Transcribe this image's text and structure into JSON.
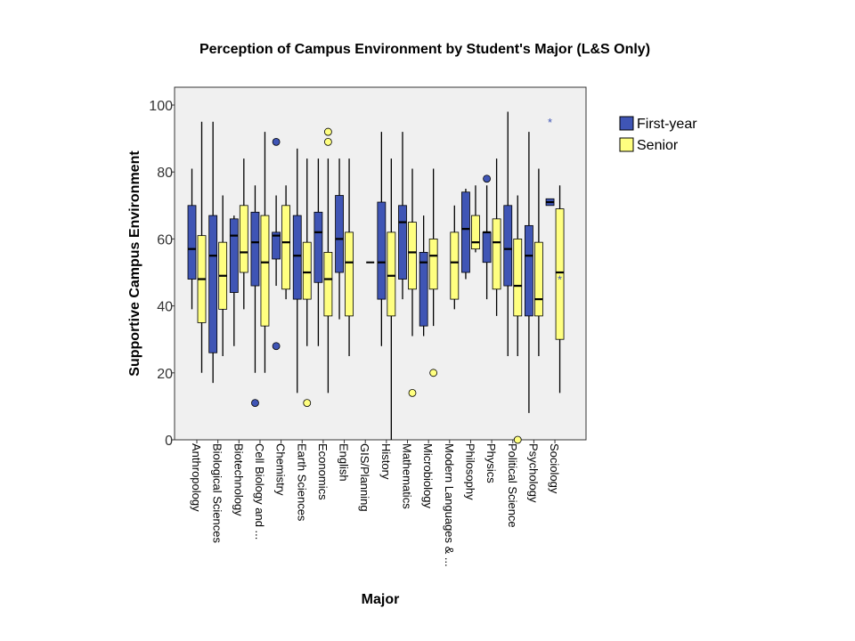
{
  "chart_data": {
    "type": "boxplot",
    "title": "Perception of Campus Environment by Student's Major (L&S Only)",
    "xlabel": "Major",
    "ylabel": "Supportive Campus Environment",
    "ylim": [
      0,
      100
    ],
    "yticks": [
      0,
      20,
      40,
      60,
      80,
      100
    ],
    "grid": false,
    "legend_position": "right",
    "colors": {
      "First-year": "#3f55b5",
      "Senior": "#ffff80",
      "plot_bg": "#f0f0f0",
      "star": "#3f55b5"
    },
    "categories": [
      "Anthropology",
      "Biological Sciences",
      "Biotechnology",
      "Cell Biology and ...",
      "Chemistry",
      "Earth Sciences",
      "Economics",
      "English",
      "GIS/Planning",
      "History",
      "Mathematics",
      "Microbiology",
      "Modern Languages & ...",
      "Philosophy",
      "Physics",
      "Political Science",
      "Psychology",
      "Sociology"
    ],
    "series": [
      {
        "name": "First-year",
        "boxes": [
          {
            "whisker_low": 39,
            "q1": 48,
            "median": 57,
            "q3": 70,
            "whisker_high": 81,
            "outliers": []
          },
          {
            "whisker_low": 17,
            "q1": 26,
            "median": 55,
            "q3": 67,
            "whisker_high": 95,
            "outliers": []
          },
          {
            "whisker_low": 28,
            "q1": 44,
            "median": 61,
            "q3": 66,
            "whisker_high": 67,
            "outliers": []
          },
          {
            "whisker_low": 20,
            "q1": 46,
            "median": 59,
            "q3": 68,
            "whisker_high": 76,
            "outliers": [
              11
            ]
          },
          {
            "whisker_low": 46,
            "q1": 54,
            "median": 61,
            "q3": 62,
            "whisker_high": 73,
            "outliers": [
              28,
              89
            ]
          },
          {
            "whisker_low": 14,
            "q1": 42,
            "median": 55,
            "q3": 67,
            "whisker_high": 87,
            "outliers": []
          },
          {
            "whisker_low": 28,
            "q1": 47,
            "median": 62,
            "q3": 68,
            "whisker_high": 84,
            "outliers": []
          },
          {
            "whisker_low": 36,
            "q1": 50,
            "median": 60,
            "q3": 73,
            "whisker_high": 84,
            "outliers": []
          },
          null,
          {
            "whisker_low": 28,
            "q1": 42,
            "median": 53,
            "q3": 71,
            "whisker_high": 92,
            "outliers": []
          },
          {
            "whisker_low": 42,
            "q1": 48,
            "median": 65,
            "q3": 70,
            "whisker_high": 92,
            "outliers": []
          },
          {
            "whisker_low": 31,
            "q1": 34,
            "median": 53,
            "q3": 56,
            "whisker_high": 67,
            "outliers": []
          },
          null,
          {
            "whisker_low": 48,
            "q1": 50,
            "median": 63,
            "q3": 74,
            "whisker_high": 75,
            "outliers": []
          },
          {
            "whisker_low": 42,
            "q1": 53,
            "median": 62,
            "q3": 62,
            "whisker_high": 76,
            "outliers": [
              78
            ]
          },
          {
            "whisker_low": 25,
            "q1": 46,
            "median": 57,
            "q3": 70,
            "whisker_high": 98,
            "outliers": []
          },
          {
            "whisker_low": 8,
            "q1": 37,
            "median": 55,
            "q3": 64,
            "whisker_high": 92,
            "outliers": []
          },
          {
            "whisker_low": 70,
            "q1": 70,
            "median": 71,
            "q3": 72,
            "whisker_high": 72,
            "outliers": [],
            "extremes": [
              95
            ]
          }
        ]
      },
      {
        "name": "Senior",
        "boxes": [
          {
            "whisker_low": 20,
            "q1": 35,
            "median": 48,
            "q3": 61,
            "whisker_high": 95,
            "outliers": []
          },
          {
            "whisker_low": 25,
            "q1": 39,
            "median": 49,
            "q3": 59,
            "whisker_high": 73,
            "outliers": []
          },
          {
            "whisker_low": 39,
            "q1": 50,
            "median": 56,
            "q3": 70,
            "whisker_high": 84,
            "outliers": []
          },
          {
            "whisker_low": 20,
            "q1": 34,
            "median": 53,
            "q3": 67,
            "whisker_high": 92,
            "outliers": []
          },
          {
            "whisker_low": 42,
            "q1": 45,
            "median": 59,
            "q3": 70,
            "whisker_high": 76,
            "outliers": []
          },
          {
            "whisker_low": 28,
            "q1": 42,
            "median": 50,
            "q3": 59,
            "whisker_high": 84,
            "outliers": [
              11
            ]
          },
          {
            "whisker_low": 14,
            "q1": 37,
            "median": 48,
            "q3": 56,
            "whisker_high": 84,
            "outliers": [
              89,
              92
            ]
          },
          {
            "whisker_low": 25,
            "q1": 37,
            "median": 53,
            "q3": 62,
            "whisker_high": 84,
            "outliers": []
          },
          {
            "whisker_low": 53,
            "q1": 53,
            "median": 53,
            "q3": 53,
            "whisker_high": 53,
            "outliers": []
          },
          {
            "whisker_low": 0,
            "q1": 37,
            "median": 49,
            "q3": 62,
            "whisker_high": 84,
            "outliers": []
          },
          {
            "whisker_low": 31,
            "q1": 45,
            "median": 56,
            "q3": 65,
            "whisker_high": 81,
            "outliers": [
              14
            ]
          },
          {
            "whisker_low": 34,
            "q1": 45,
            "median": 55,
            "q3": 60,
            "whisker_high": 81,
            "outliers": [
              20
            ]
          },
          {
            "whisker_low": 39,
            "q1": 42,
            "median": 53,
            "q3": 62,
            "whisker_high": 70,
            "outliers": []
          },
          {
            "whisker_low": 56,
            "q1": 57,
            "median": 59,
            "q3": 67,
            "whisker_high": 76,
            "outliers": []
          },
          {
            "whisker_low": 37,
            "q1": 45,
            "median": 59,
            "q3": 66,
            "whisker_high": 84,
            "outliers": []
          },
          {
            "whisker_low": 25,
            "q1": 37,
            "median": 46,
            "q3": 60,
            "whisker_high": 73,
            "outliers": [
              0
            ]
          },
          {
            "whisker_low": 25,
            "q1": 37,
            "median": 42,
            "q3": 59,
            "whisker_high": 81,
            "outliers": []
          },
          {
            "whisker_low": 14,
            "q1": 30,
            "median": 50,
            "q3": 69,
            "whisker_high": 76,
            "outliers": [],
            "extremes": [
              48
            ]
          }
        ]
      }
    ]
  }
}
